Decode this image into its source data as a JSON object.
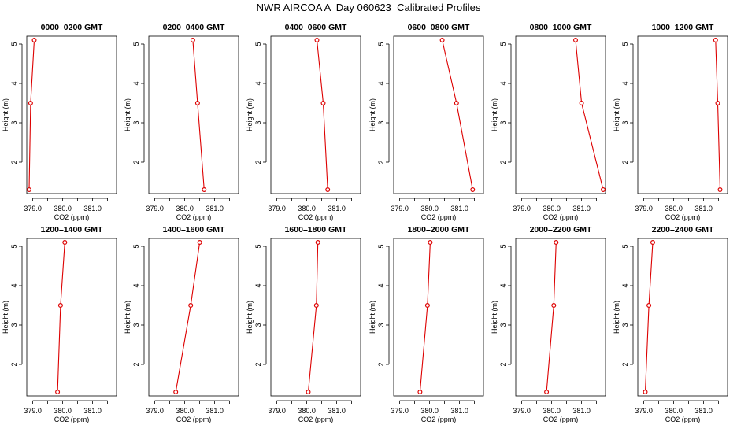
{
  "title": "NWR AIRCOA A  Day 060623  Calibrated Profiles",
  "colors": {
    "line": "#dd0000",
    "marker": "#dd0000",
    "frame": "#000000"
  },
  "chart_data": [
    {
      "type": "line",
      "title": "0000–0200 GMT",
      "xlabel": "CO2 (ppm)",
      "ylabel": "Height (m)",
      "xlim": [
        378.8,
        381.8
      ],
      "ylim": [
        1.2,
        5.2
      ],
      "xticks": [
        379.0,
        379.5,
        380.0,
        380.5,
        381.0,
        381.5
      ],
      "xtick_labels": [
        "379.0",
        "",
        "380.0",
        "",
        "381.0",
        ""
      ],
      "yticks": [
        2,
        3,
        4,
        5
      ],
      "x": [
        378.88,
        378.93,
        379.05
      ],
      "y": [
        1.3,
        3.5,
        5.1
      ]
    },
    {
      "type": "line",
      "title": "0200–0400 GMT",
      "xlabel": "CO2 (ppm)",
      "ylabel": "Height (m)",
      "xlim": [
        378.8,
        381.8
      ],
      "ylim": [
        1.2,
        5.2
      ],
      "xticks": [
        379.0,
        379.5,
        380.0,
        380.5,
        381.0,
        381.5
      ],
      "xtick_labels": [
        "379.0",
        "",
        "380.0",
        "",
        "381.0",
        ""
      ],
      "yticks": [
        2,
        3,
        4,
        5
      ],
      "x": [
        380.65,
        380.43,
        380.27
      ],
      "y": [
        1.3,
        3.5,
        5.1
      ]
    },
    {
      "type": "line",
      "title": "0400–0600 GMT",
      "xlabel": "CO2 (ppm)",
      "ylabel": "Height (m)",
      "xlim": [
        378.8,
        381.8
      ],
      "ylim": [
        1.2,
        5.2
      ],
      "xticks": [
        379.0,
        379.5,
        380.0,
        380.5,
        381.0,
        381.5
      ],
      "xtick_labels": [
        "379.0",
        "",
        "380.0",
        "",
        "381.0",
        ""
      ],
      "yticks": [
        2,
        3,
        4,
        5
      ],
      "x": [
        380.7,
        380.55,
        380.34
      ],
      "y": [
        1.3,
        3.5,
        5.1
      ]
    },
    {
      "type": "line",
      "title": "0600–0800 GMT",
      "xlabel": "CO2 (ppm)",
      "ylabel": "Height (m)",
      "xlim": [
        378.8,
        381.8
      ],
      "ylim": [
        1.2,
        5.2
      ],
      "xticks": [
        379.0,
        379.5,
        380.0,
        380.5,
        381.0,
        381.5
      ],
      "xtick_labels": [
        "379.0",
        "",
        "380.0",
        "",
        "381.0",
        ""
      ],
      "yticks": [
        2,
        3,
        4,
        5
      ],
      "x": [
        381.44,
        380.9,
        380.42
      ],
      "y": [
        1.3,
        3.5,
        5.1
      ]
    },
    {
      "type": "line",
      "title": "0800–1000 GMT",
      "xlabel": "CO2 (ppm)",
      "ylabel": "Height (m)",
      "xlim": [
        378.8,
        381.8
      ],
      "ylim": [
        1.2,
        5.2
      ],
      "xticks": [
        379.0,
        379.5,
        380.0,
        380.5,
        381.0,
        381.5
      ],
      "xtick_labels": [
        "379.0",
        "",
        "380.0",
        "",
        "381.0",
        ""
      ],
      "yticks": [
        2,
        3,
        4,
        5
      ],
      "x": [
        381.72,
        381.0,
        380.8
      ],
      "y": [
        1.3,
        3.5,
        5.1
      ]
    },
    {
      "type": "line",
      "title": "1000–1200 GMT",
      "xlabel": "CO2 (ppm)",
      "ylabel": "Height (m)",
      "xlim": [
        378.8,
        381.8
      ],
      "ylim": [
        1.2,
        5.2
      ],
      "xticks": [
        379.0,
        379.5,
        380.0,
        380.5,
        381.0,
        381.5
      ],
      "xtick_labels": [
        "379.0",
        "",
        "380.0",
        "",
        "381.0",
        ""
      ],
      "yticks": [
        2,
        3,
        4,
        5
      ],
      "x": [
        381.55,
        381.47,
        381.4
      ],
      "y": [
        1.3,
        3.5,
        5.1
      ]
    },
    {
      "type": "line",
      "title": "1200–1400 GMT",
      "xlabel": "CO2 (ppm)",
      "ylabel": "Height (m)",
      "xlim": [
        378.8,
        381.8
      ],
      "ylim": [
        1.2,
        5.2
      ],
      "xticks": [
        379.0,
        379.5,
        380.0,
        380.5,
        381.0,
        381.5
      ],
      "xtick_labels": [
        "379.0",
        "",
        "380.0",
        "",
        "381.0",
        ""
      ],
      "yticks": [
        2,
        3,
        4,
        5
      ],
      "x": [
        379.83,
        379.93,
        380.07
      ],
      "y": [
        1.3,
        3.5,
        5.1
      ]
    },
    {
      "type": "line",
      "title": "1400–1600 GMT",
      "xlabel": "CO2 (ppm)",
      "ylabel": "Height (m)",
      "xlim": [
        378.8,
        381.8
      ],
      "ylim": [
        1.2,
        5.2
      ],
      "xticks": [
        379.0,
        379.5,
        380.0,
        380.5,
        381.0,
        381.5
      ],
      "xtick_labels": [
        "379.0",
        "",
        "380.0",
        "",
        "381.0",
        ""
      ],
      "yticks": [
        2,
        3,
        4,
        5
      ],
      "x": [
        379.7,
        380.2,
        380.5
      ],
      "y": [
        1.3,
        3.5,
        5.1
      ]
    },
    {
      "type": "line",
      "title": "1600–1800 GMT",
      "xlabel": "CO2 (ppm)",
      "ylabel": "Height (m)",
      "xlim": [
        378.8,
        381.8
      ],
      "ylim": [
        1.2,
        5.2
      ],
      "xticks": [
        379.0,
        379.5,
        380.0,
        380.5,
        381.0,
        381.5
      ],
      "xtick_labels": [
        "379.0",
        "",
        "380.0",
        "",
        "381.0",
        ""
      ],
      "yticks": [
        2,
        3,
        4,
        5
      ],
      "x": [
        380.05,
        380.32,
        380.37
      ],
      "y": [
        1.3,
        3.5,
        5.1
      ]
    },
    {
      "type": "line",
      "title": "1800–2000 GMT",
      "xlabel": "CO2 (ppm)",
      "ylabel": "Height (m)",
      "xlim": [
        378.8,
        381.8
      ],
      "ylim": [
        1.2,
        5.2
      ],
      "xticks": [
        379.0,
        379.5,
        380.0,
        380.5,
        381.0,
        381.5
      ],
      "xtick_labels": [
        "379.0",
        "",
        "380.0",
        "",
        "381.0",
        ""
      ],
      "yticks": [
        2,
        3,
        4,
        5
      ],
      "x": [
        379.68,
        379.93,
        380.02
      ],
      "y": [
        1.3,
        3.5,
        5.1
      ]
    },
    {
      "type": "line",
      "title": "2000–2200 GMT",
      "xlabel": "CO2 (ppm)",
      "ylabel": "Height (m)",
      "xlim": [
        378.8,
        381.8
      ],
      "ylim": [
        1.2,
        5.2
      ],
      "xticks": [
        379.0,
        379.5,
        380.0,
        380.5,
        381.0,
        381.5
      ],
      "xtick_labels": [
        "379.0",
        "",
        "380.0",
        "",
        "381.0",
        ""
      ],
      "yticks": [
        2,
        3,
        4,
        5
      ],
      "x": [
        379.83,
        380.07,
        380.15
      ],
      "y": [
        1.3,
        3.5,
        5.1
      ]
    },
    {
      "type": "line",
      "title": "2200–2400 GMT",
      "xlabel": "CO2 (ppm)",
      "ylabel": "Height (m)",
      "xlim": [
        378.8,
        381.8
      ],
      "ylim": [
        1.2,
        5.2
      ],
      "xticks": [
        379.0,
        379.5,
        380.0,
        380.5,
        381.0,
        381.5
      ],
      "xtick_labels": [
        "379.0",
        "",
        "380.0",
        "",
        "381.0",
        ""
      ],
      "yticks": [
        2,
        3,
        4,
        5
      ],
      "x": [
        379.05,
        379.17,
        379.3
      ],
      "y": [
        1.3,
        3.5,
        5.1
      ]
    }
  ]
}
